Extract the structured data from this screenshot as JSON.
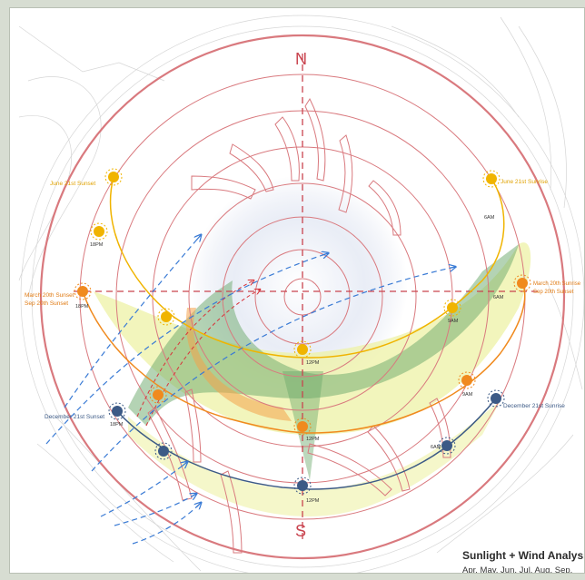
{
  "compass": {
    "north": "N",
    "south": "S"
  },
  "sun_paths": {
    "june": {
      "sunset": "June 21st Sunset",
      "sunrise": "June 21st Sunrise",
      "am": "6AM",
      "pm": "18PM",
      "color": "#f0b400"
    },
    "equinox": {
      "sunset_line1": "March 20th Sunset",
      "sunset_line2": "Sep 20th Sunset",
      "sunrise_line1": "March 20th Sunrise",
      "sunrise_line2": "Sep 20th Sunset",
      "am": "6AM",
      "pm": "18PM",
      "color": "#f08a1e"
    },
    "december": {
      "sunset": "December 21st Sunset",
      "sunrise": "December 21st Sunrise",
      "am": "6AM",
      "pm": "18PM",
      "color": "#3c5a86"
    }
  },
  "time_labels": {
    "june_9am": "9AM",
    "june_12pm": "12PM",
    "eq_9am": "9AM",
    "eq_12pm": "12PM",
    "dec_12pm": "12PM",
    "dec_6am": "6AM"
  },
  "legend": {
    "title": "Sunlight + Wind Analysis",
    "months": "Apr. May. Jun. Jul. Aug. Sep."
  },
  "colors": {
    "ring": "#d9797e",
    "axis": "#c9434e",
    "wind": "#3a7bd5",
    "wind_red": "#d8333a",
    "summer_band": "#eef1a6",
    "green_band": "#6aa86a"
  }
}
